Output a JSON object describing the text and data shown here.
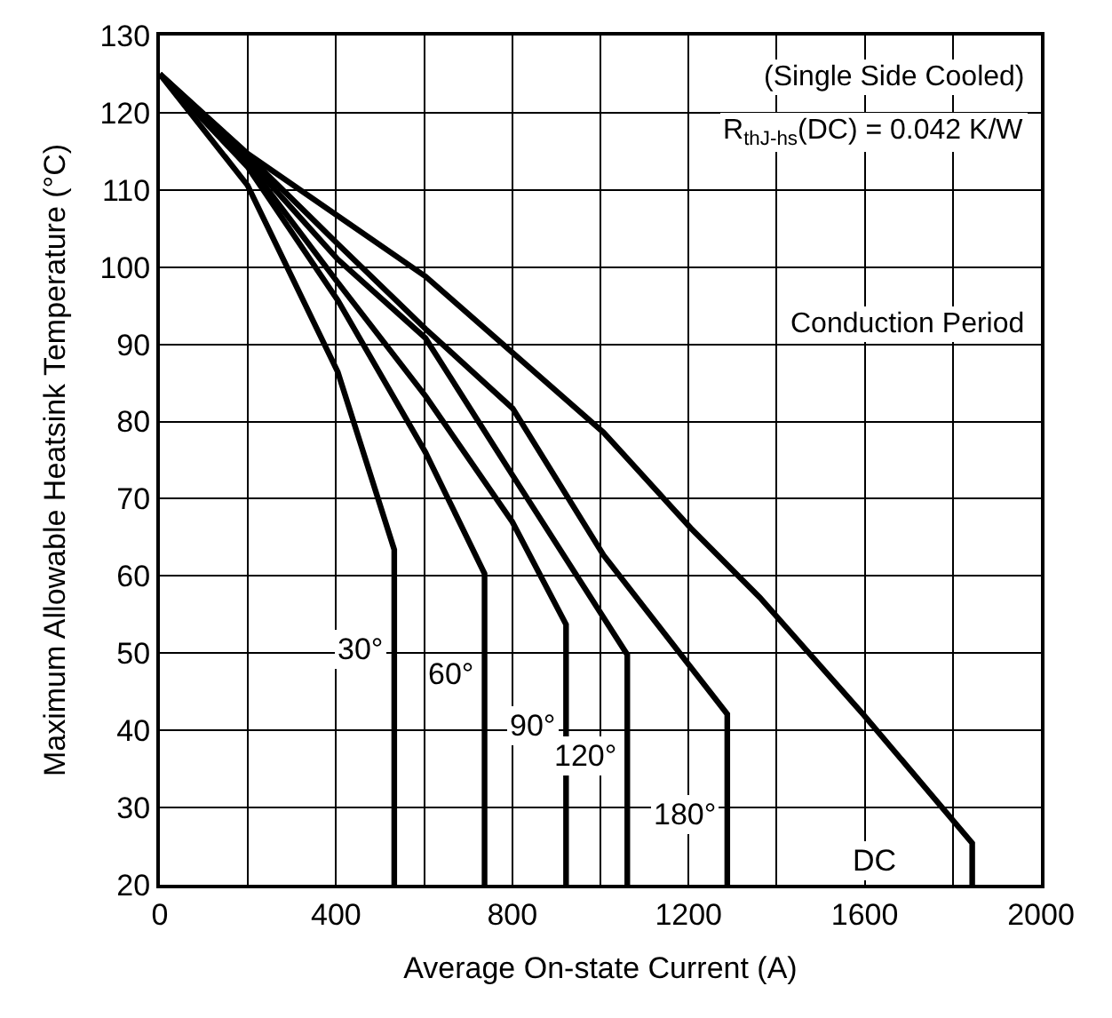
{
  "chart_data": {
    "type": "line",
    "xlabel": "Average On-state Current (A)",
    "ylabel": "Maximum Allowable Heatsink Temperature (°C)",
    "annotations": [
      "(Single Side Cooled)",
      "R$_{thJ-hs}$(DC) = 0.042 K/W",
      "Conduction Period"
    ],
    "xlim": [
      0,
      2000
    ],
    "xticks": [
      0,
      {
        "value": 200,
        "label": null
      },
      400,
      {
        "value": 600,
        "label": null
      },
      800,
      {
        "value": 1000,
        "label": null
      },
      1200,
      {
        "value": 1400,
        "label": null
      },
      1600,
      {
        "value": 1800,
        "label": null
      },
      2000
    ],
    "ylim": [
      20,
      130
    ],
    "yticks": [
      20,
      30,
      40,
      50,
      60,
      70,
      80,
      90,
      100,
      110,
      120,
      130
    ],
    "grid": true,
    "legend": false,
    "marker": "none",
    "line_style": "solid",
    "series": [
      {
        "name": "30°",
        "color": "#000000",
        "x": [
          0,
          199,
          404,
          532,
          532
        ],
        "values": [
          125,
          110.6,
          86.4,
          63.4,
          20
        ]
      },
      {
        "name": "60°",
        "color": "#000000",
        "x": [
          0,
          199,
          404,
          603,
          737,
          737
        ],
        "values": [
          125,
          113,
          95.7,
          76,
          60.3,
          20
        ]
      },
      {
        "name": "90°",
        "color": "#000000",
        "x": [
          0,
          199,
          404,
          603,
          800,
          922,
          922
        ],
        "values": [
          125,
          113.5,
          98,
          83.3,
          67,
          53.7,
          20
        ]
      },
      {
        "name": "120°",
        "color": "#000000",
        "x": [
          0,
          199,
          404,
          603,
          801,
          1061,
          1061
        ],
        "values": [
          125,
          114,
          101,
          90.8,
          73,
          49.8,
          20
        ]
      },
      {
        "name": "180°",
        "color": "#000000",
        "x": [
          0,
          199,
          404,
          603,
          801,
          1007,
          1288,
          1288
        ],
        "values": [
          125,
          114.5,
          103,
          92,
          81.7,
          62.7,
          42.1,
          20
        ]
      },
      {
        "name": "DC",
        "color": "#000000",
        "x": [
          0,
          199,
          603,
          1007,
          1205,
          1362,
          1596,
          1844,
          1844
        ],
        "values": [
          125,
          114.7,
          98.8,
          78.6,
          66.2,
          57.2,
          42.1,
          25.4,
          20
        ]
      }
    ]
  }
}
